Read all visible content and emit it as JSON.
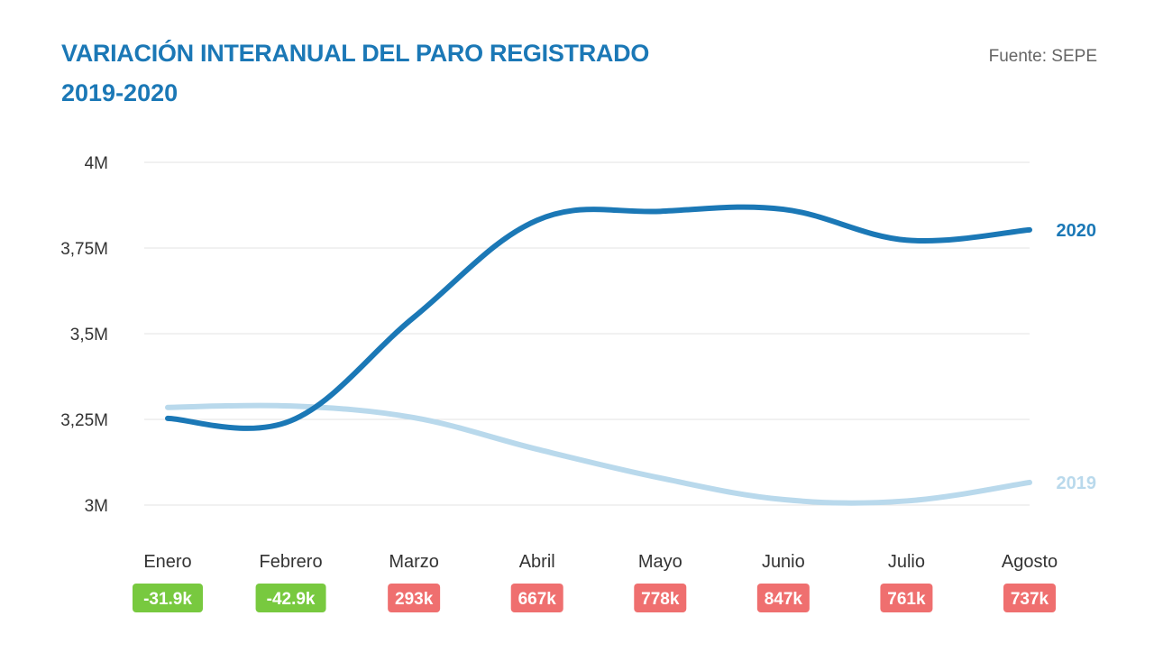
{
  "header": {
    "title": "VARIACIÓN INTERANUAL DEL PARO REGISTRADO",
    "subtitle": "2019-2020",
    "source": "Fuente: SEPE"
  },
  "chart_data": {
    "type": "line",
    "title": "VARIACIÓN INTERANUAL DEL PARO REGISTRADO",
    "subtitle": "2019-2020",
    "categories": [
      "Enero",
      "Febrero",
      "Marzo",
      "Abril",
      "Mayo",
      "Junio",
      "Julio",
      "Agosto"
    ],
    "ylim": [
      3000000,
      4000000
    ],
    "yticks": [
      3000000,
      3250000,
      3500000,
      3750000,
      4000000
    ],
    "ytick_labels": [
      "3M",
      "3,25M",
      "3,5M",
      "3,75M",
      "4M"
    ],
    "grid": true,
    "series": [
      {
        "name": "2019",
        "color": "#b9d9ec",
        "values": [
          3285000,
          3289000,
          3255000,
          3163000,
          3079000,
          3016000,
          3012000,
          3066000
        ]
      },
      {
        "name": "2020",
        "color": "#1b78b6",
        "values": [
          3253000,
          3246000,
          3548000,
          3831000,
          3857000,
          3863000,
          3773000,
          3803000
        ]
      }
    ],
    "differences": [
      {
        "label": "-31.9k",
        "sign": "negative"
      },
      {
        "label": "-42.9k",
        "sign": "negative"
      },
      {
        "label": "293k",
        "sign": "positive"
      },
      {
        "label": "667k",
        "sign": "positive"
      },
      {
        "label": "778k",
        "sign": "positive"
      },
      {
        "label": "847k",
        "sign": "positive"
      },
      {
        "label": "761k",
        "sign": "positive"
      },
      {
        "label": "737k",
        "sign": "positive"
      }
    ],
    "colors": {
      "negative": "#78c93f",
      "positive": "#ef6f6f",
      "grid": "#e3e3e3"
    }
  }
}
